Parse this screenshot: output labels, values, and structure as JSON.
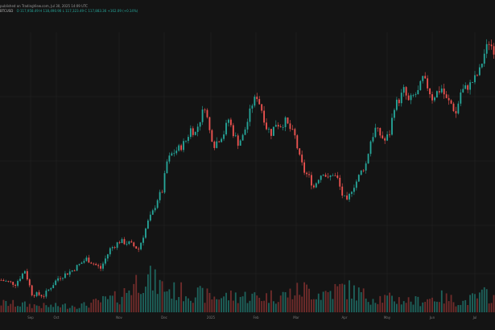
{
  "header": {
    "source_line": "published on TradingView.com, Jul 30, 2025 14:09 UTC",
    "symbol": "BTCUSD",
    "ohlc": "O 117,958.49 H 118,490.90 L 117,323.49 C 117,883.36 +162.09 (+0.14%)"
  },
  "colors": {
    "background": "#141414",
    "up": "#26a69a",
    "down": "#ef5350",
    "up_volume": "#1f6b64",
    "down_volume": "#7a2f2e",
    "grid": "#1d1d1d",
    "axis_text": "#7a7a7a"
  },
  "chart_data": {
    "type": "candlestick",
    "grid": true,
    "x_axis": {
      "tick_labels": [
        "Sep",
        "Oct",
        "Nov",
        "Dec",
        "2025",
        "Feb",
        "Mar",
        "Apr",
        "May",
        "Jun",
        "Jul"
      ]
    },
    "y_range": [
      53000,
      122000
    ],
    "close_path": [
      [
        0,
        58000
      ],
      [
        6,
        57000
      ],
      [
        10,
        60500
      ],
      [
        13,
        54500
      ],
      [
        18,
        54000
      ],
      [
        24,
        58500
      ],
      [
        30,
        60500
      ],
      [
        36,
        63500
      ],
      [
        42,
        61000
      ],
      [
        46,
        66000
      ],
      [
        50,
        68000
      ],
      [
        54,
        67500
      ],
      [
        58,
        66000
      ],
      [
        60,
        69500
      ],
      [
        62,
        73000
      ],
      [
        64,
        75500
      ],
      [
        66,
        79000
      ],
      [
        68,
        81000
      ],
      [
        70,
        88500
      ],
      [
        72,
        90500
      ],
      [
        76,
        92500
      ],
      [
        78,
        94000
      ],
      [
        80,
        97000
      ],
      [
        82,
        96000
      ],
      [
        84,
        99500
      ],
      [
        86,
        103000
      ],
      [
        88,
        96500
      ],
      [
        90,
        93000
      ],
      [
        92,
        94500
      ],
      [
        94,
        96000
      ],
      [
        96,
        99500
      ],
      [
        98,
        96000
      ],
      [
        100,
        93500
      ],
      [
        102,
        95000
      ],
      [
        104,
        99000
      ],
      [
        106,
        103500
      ],
      [
        108,
        105500
      ],
      [
        110,
        102000
      ],
      [
        112,
        97500
      ],
      [
        114,
        96000
      ],
      [
        116,
        98500
      ],
      [
        118,
        98000
      ],
      [
        120,
        99000
      ],
      [
        122,
        97000
      ],
      [
        124,
        95000
      ],
      [
        126,
        89500
      ],
      [
        128,
        86000
      ],
      [
        130,
        84500
      ],
      [
        132,
        82000
      ],
      [
        134,
        84500
      ],
      [
        136,
        86000
      ],
      [
        138,
        84000
      ],
      [
        140,
        85500
      ],
      [
        142,
        84000
      ],
      [
        144,
        80000
      ],
      [
        146,
        78000
      ],
      [
        148,
        81500
      ],
      [
        150,
        83500
      ],
      [
        152,
        86000
      ],
      [
        154,
        88000
      ],
      [
        156,
        94000
      ],
      [
        158,
        97000
      ],
      [
        160,
        95500
      ],
      [
        162,
        94000
      ],
      [
        164,
        96000
      ],
      [
        166,
        103000
      ],
      [
        168,
        104500
      ],
      [
        170,
        107000
      ],
      [
        172,
        104000
      ],
      [
        174,
        105500
      ],
      [
        176,
        106500
      ],
      [
        178,
        110000
      ],
      [
        180,
        108000
      ],
      [
        182,
        105000
      ],
      [
        184,
        106500
      ],
      [
        186,
        107500
      ],
      [
        188,
        104500
      ],
      [
        190,
        103500
      ],
      [
        192,
        101000
      ],
      [
        194,
        106500
      ],
      [
        196,
        107500
      ],
      [
        198,
        108500
      ],
      [
        200,
        110000
      ],
      [
        202,
        112000
      ],
      [
        204,
        116500
      ],
      [
        206,
        119500
      ],
      [
        208,
        117500
      ]
    ],
    "volume_profile": [
      [
        0,
        0.18
      ],
      [
        20,
        0.12
      ],
      [
        35,
        0.14
      ],
      [
        50,
        0.3
      ],
      [
        60,
        0.72
      ],
      [
        66,
        0.55
      ],
      [
        72,
        0.42
      ],
      [
        80,
        0.38
      ],
      [
        90,
        0.3
      ],
      [
        100,
        0.32
      ],
      [
        110,
        0.3
      ],
      [
        120,
        0.34
      ],
      [
        128,
        0.45
      ],
      [
        135,
        0.36
      ],
      [
        145,
        0.48
      ],
      [
        155,
        0.3
      ],
      [
        165,
        0.26
      ],
      [
        175,
        0.22
      ],
      [
        185,
        0.3
      ],
      [
        195,
        0.2
      ],
      [
        205,
        0.36
      ],
      [
        208,
        0.3
      ]
    ]
  }
}
